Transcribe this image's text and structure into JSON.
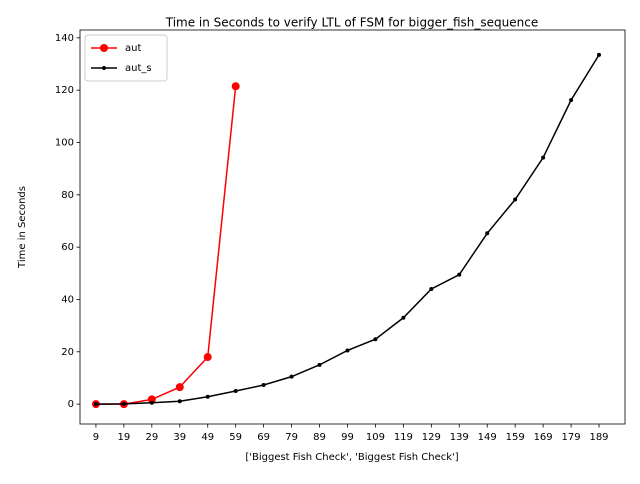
{
  "chart_data": {
    "type": "line",
    "title": "Time in Seconds to verify LTL of FSM for bigger_fish_sequence",
    "x_label": "['Biggest Fish Check', 'Biggest Fish Check']",
    "y_label": "Time in Seconds",
    "series": [
      {
        "name": "aut",
        "color": "#ff0000",
        "marker_size": 4,
        "x": [
          9,
          19,
          29,
          39,
          49,
          59
        ],
        "values": [
          0,
          0,
          1.8,
          6.5,
          18,
          121.5
        ]
      },
      {
        "name": "aut_s",
        "color": "#000000",
        "marker_size": 2,
        "x": [
          9,
          19,
          29,
          39,
          49,
          59,
          69,
          79,
          89,
          99,
          109,
          119,
          129,
          139,
          149,
          159,
          169,
          179,
          189
        ],
        "values": [
          0,
          0.1,
          0.5,
          1.1,
          2.8,
          5,
          7.3,
          10.5,
          15,
          20.5,
          24.8,
          33,
          44,
          49.5,
          65.3,
          78.2,
          94.2,
          116.2,
          133.5
        ]
      }
    ],
    "xlim": [
      3.3,
      198.3
    ],
    "xticks": [
      9,
      19,
      29,
      39,
      49,
      59,
      69,
      79,
      89,
      99,
      109,
      119,
      129,
      139,
      149,
      159,
      169,
      179,
      189
    ],
    "ylim": [
      -7.6,
      143
    ],
    "yticks": [
      0,
      20,
      40,
      60,
      80,
      100,
      120,
      140
    ],
    "legend": "upper left",
    "grid": false
  }
}
